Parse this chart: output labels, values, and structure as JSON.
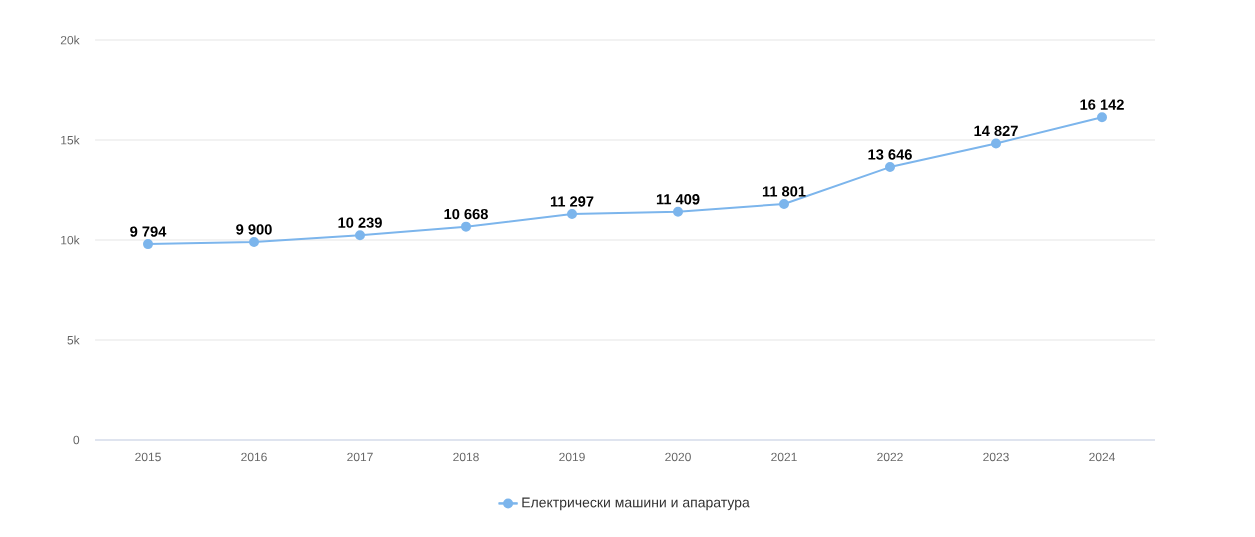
{
  "chart_data": {
    "type": "line",
    "categories": [
      "2015",
      "2016",
      "2017",
      "2018",
      "2019",
      "2020",
      "2021",
      "2022",
      "2023",
      "2024"
    ],
    "series": [
      {
        "name": "Електрически машини и апаратура",
        "color": "#7cb5ec",
        "values": [
          9794,
          9900,
          10239,
          10668,
          11297,
          11409,
          11801,
          13646,
          14827,
          16142
        ],
        "value_labels": [
          "9 794",
          "9 900",
          "10 239",
          "10 668",
          "11 297",
          "11 409",
          "11 801",
          "13 646",
          "14 827",
          "16 142"
        ]
      }
    ],
    "ylim": [
      0,
      20000
    ],
    "yticks": [
      {
        "value": 0,
        "label": "0"
      },
      {
        "value": 5000,
        "label": "5k"
      },
      {
        "value": 10000,
        "label": "10k"
      },
      {
        "value": 15000,
        "label": "15k"
      },
      {
        "value": 20000,
        "label": "20k"
      }
    ],
    "grid": "y",
    "legend": "bottom",
    "marker": "circle",
    "line_style": "solid"
  }
}
